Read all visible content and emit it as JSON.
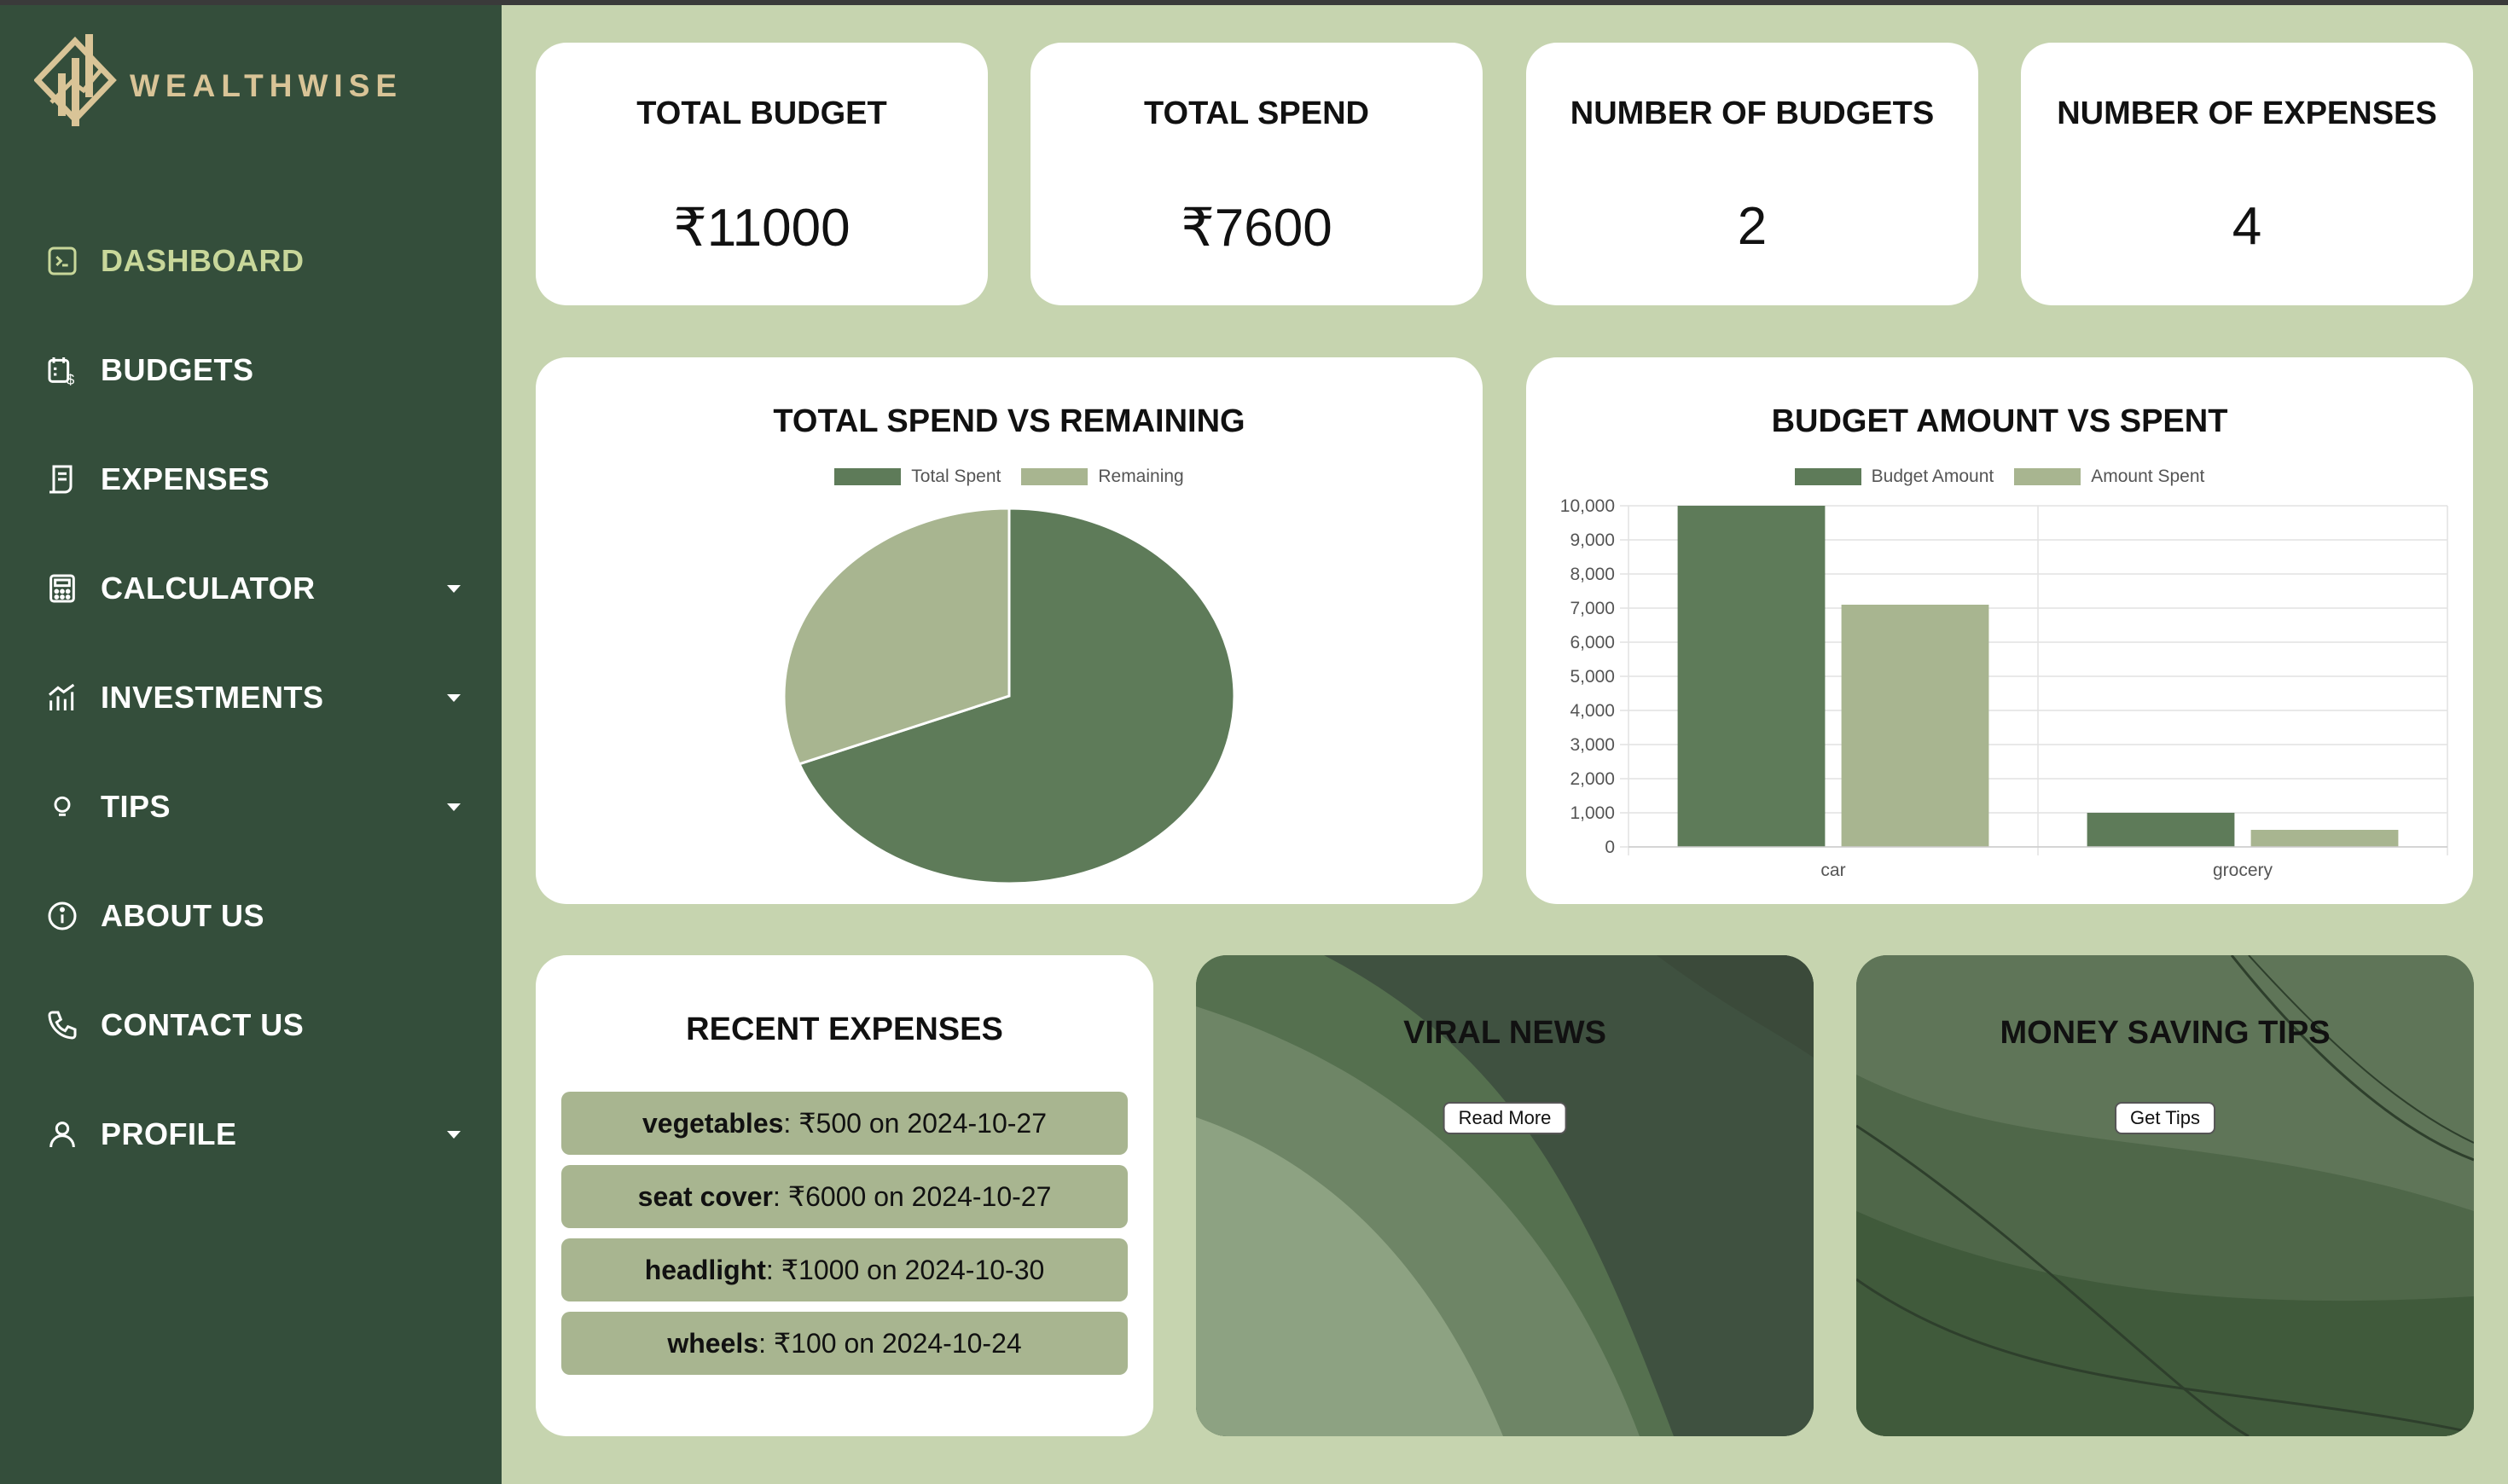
{
  "app": {
    "brand": "WEALTHWISE"
  },
  "sidebar": {
    "items": [
      {
        "label": "DASHBOARD",
        "icon": "terminal-icon",
        "active": true,
        "dropdown": false
      },
      {
        "label": "BUDGETS",
        "icon": "budget-calendar-icon",
        "active": false,
        "dropdown": false
      },
      {
        "label": "EXPENSES",
        "icon": "receipt-icon",
        "active": false,
        "dropdown": false
      },
      {
        "label": "CALCULATOR",
        "icon": "calculator-icon",
        "active": false,
        "dropdown": true
      },
      {
        "label": "INVESTMENTS",
        "icon": "investment-growth-icon",
        "active": false,
        "dropdown": true
      },
      {
        "label": "TIPS",
        "icon": "lightbulb-icon",
        "active": false,
        "dropdown": true
      },
      {
        "label": "ABOUT US",
        "icon": "info-icon",
        "active": false,
        "dropdown": false
      },
      {
        "label": "CONTACT US",
        "icon": "phone-icon",
        "active": false,
        "dropdown": false
      },
      {
        "label": "PROFILE",
        "icon": "user-icon",
        "active": false,
        "dropdown": true
      }
    ]
  },
  "stats": [
    {
      "title": "TOTAL BUDGET",
      "value": "₹11000"
    },
    {
      "title": "TOTAL SPEND",
      "value": "₹7600"
    },
    {
      "title": "NUMBER OF BUDGETS",
      "value": "2"
    },
    {
      "title": "NUMBER OF EXPENSES",
      "value": "4"
    }
  ],
  "colors": {
    "dark_green": "#5e7b59",
    "light_green": "#a8b590",
    "sidebar": "#344e3b",
    "background": "#c6d4af"
  },
  "chart_data": [
    {
      "type": "pie",
      "title": "TOTAL SPEND VS REMAINING",
      "legend": [
        "Total Spent",
        "Remaining"
      ],
      "labels": [
        "Total Spent",
        "Remaining"
      ],
      "values": [
        7600,
        3400
      ],
      "colors": [
        "#5e7b59",
        "#a8b590"
      ],
      "legend_position": "top"
    },
    {
      "type": "bar",
      "title": "BUDGET AMOUNT VS SPENT",
      "categories": [
        "car",
        "grocery"
      ],
      "series": [
        {
          "name": "Budget Amount",
          "values": [
            10000,
            1000
          ],
          "color": "#5e7b59"
        },
        {
          "name": "Amount Spent",
          "values": [
            7100,
            500
          ],
          "color": "#a8b590"
        }
      ],
      "ylim": [
        0,
        10000
      ],
      "yticks": [
        "10,000",
        "9,000",
        "8,000",
        "7,000",
        "6,000",
        "5,000",
        "4,000",
        "3,000",
        "2,000",
        "1,000",
        "0"
      ],
      "grid": true,
      "legend_position": "top"
    }
  ],
  "recent": {
    "title": "RECENT EXPENSES",
    "items": [
      {
        "name": "vegetables",
        "detail": ": ₹500 on 2024-10-27"
      },
      {
        "name": "seat cover",
        "detail": ": ₹6000 on 2024-10-27"
      },
      {
        "name": "headlight",
        "detail": ": ₹1000 on 2024-10-30"
      },
      {
        "name": "wheels",
        "detail": ": ₹100 on 2024-10-24"
      }
    ]
  },
  "news": {
    "title": "VIRAL NEWS",
    "button": "Read More"
  },
  "tips": {
    "title": "MONEY SAVING TIPS",
    "button": "Get Tips"
  }
}
